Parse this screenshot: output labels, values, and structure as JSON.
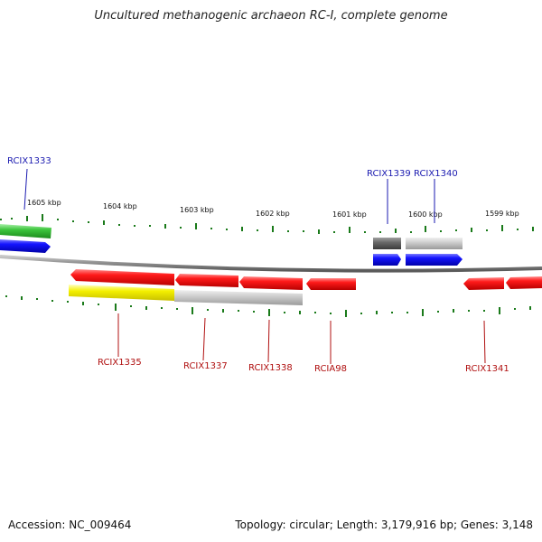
{
  "title": "Uncultured methanogenic archaeon RC-I, complete genome",
  "footer": {
    "accession": "Accession: NC_009464",
    "topology": "Topology: circular; Length: 3,179,916 bp; Genes: 3,148"
  },
  "colors": {
    "plus_label": "#1a1ab0",
    "minus_label": "#b01010",
    "tick": "#1a7a1a",
    "backbone": "#8a8a8a"
  },
  "kbp_ticks": [
    "1605 kbp",
    "1604 kbp",
    "1603 kbp",
    "1602 kbp",
    "1601 kbp",
    "1600 kbp",
    "1599 kbp"
  ],
  "labels_plus": [
    "RCIX1333",
    "RCIX1339",
    "RCIX1340"
  ],
  "labels_minus": [
    "RCIX1335",
    "RCIX1337",
    "RCIX1338",
    "RCIA98",
    "RCIX1341"
  ]
}
